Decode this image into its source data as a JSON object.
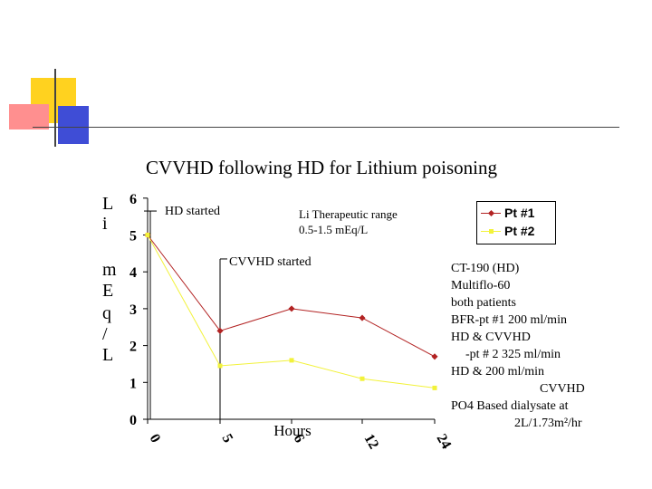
{
  "slide": {
    "title": "CVVHD following HD for Lithium poisoning"
  },
  "chart_data": {
    "type": "line",
    "title": "CVVHD following HD for Lithium poisoning",
    "xlabel": "Hours",
    "ylabel_chars": [
      "L",
      "i",
      "m",
      "E",
      "q",
      "/",
      "L"
    ],
    "categories": [
      "0",
      "5",
      "6",
      "12",
      "24"
    ],
    "yticks": [
      "0",
      "1",
      "2",
      "3",
      "4",
      "5",
      "6"
    ],
    "ylim": [
      0,
      6
    ],
    "series": [
      {
        "name": "Pt #1",
        "color": "#b22222",
        "values": [
          5.0,
          2.4,
          3.0,
          2.75,
          1.7
        ]
      },
      {
        "name": "Pt #2",
        "color": "#f2f23a",
        "values": [
          5.0,
          1.45,
          1.6,
          1.1,
          0.85
        ]
      }
    ],
    "legend_position": "top-right",
    "annotations": {
      "hd_started": "HD started",
      "cvvhd_started": "CVVHD started",
      "li_range_line1": "Li Therapeutic range",
      "li_range_line2": "0.5-1.5 mEq/L"
    }
  },
  "notes": {
    "lines": [
      "CT-190 (HD)",
      "Multiflo-60",
      "both patients",
      "BFR-pt #1 200 ml/min",
      "HD & CVVHD",
      "-pt # 2 325 ml/min",
      "HD & 200 ml/min",
      "CVVHD",
      "PO4 Based dialysate at",
      "2L/1.73m²/hr"
    ]
  }
}
